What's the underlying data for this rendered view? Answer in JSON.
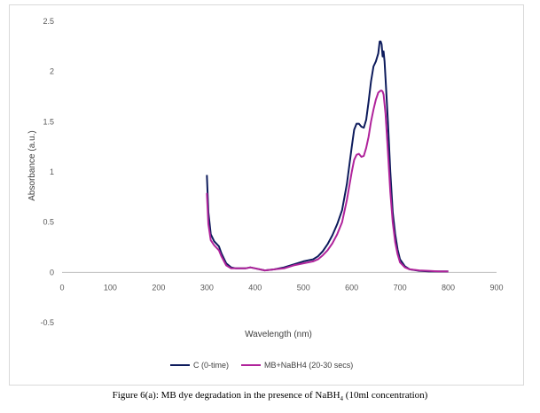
{
  "chart_data": {
    "type": "line",
    "xlabel": "Wavelength (nm)",
    "ylabel": "Absorbance (a.u.)",
    "xlim": [
      0,
      900
    ],
    "ylim": [
      -0.5,
      2.5
    ],
    "x_ticks": [
      "0",
      "100",
      "200",
      "300",
      "400",
      "500",
      "600",
      "700",
      "800",
      "900"
    ],
    "y_ticks": [
      "-0.5",
      "0",
      "0.5",
      "1",
      "1.5",
      "2",
      "2.5"
    ],
    "grid": false,
    "legend_position": "bottom",
    "series": [
      {
        "name": "C (0-time)",
        "color": "#0d1b5c",
        "x": [
          300,
          303,
          308,
          315,
          325,
          330,
          340,
          350,
          360,
          380,
          390,
          400,
          420,
          440,
          460,
          480,
          500,
          510,
          520,
          530,
          540,
          550,
          560,
          570,
          580,
          590,
          600,
          605,
          610,
          615,
          620,
          625,
          630,
          635,
          640,
          645,
          650,
          655,
          658,
          660,
          662,
          664,
          666,
          668,
          670,
          675,
          680,
          685,
          690,
          695,
          700,
          710,
          720,
          740,
          760,
          780,
          800
        ],
        "y": [
          0.97,
          0.6,
          0.38,
          0.31,
          0.26,
          0.19,
          0.09,
          0.05,
          0.04,
          0.04,
          0.05,
          0.04,
          0.02,
          0.03,
          0.05,
          0.08,
          0.11,
          0.12,
          0.13,
          0.16,
          0.21,
          0.28,
          0.37,
          0.48,
          0.62,
          0.88,
          1.25,
          1.42,
          1.48,
          1.48,
          1.45,
          1.44,
          1.52,
          1.7,
          1.9,
          2.05,
          2.1,
          2.18,
          2.3,
          2.3,
          2.27,
          2.15,
          2.2,
          2.1,
          1.93,
          1.5,
          1.0,
          0.6,
          0.38,
          0.23,
          0.13,
          0.06,
          0.03,
          0.015,
          0.01,
          0.01,
          0.01
        ]
      },
      {
        "name": "MB+NaBH4 (20-30 secs)",
        "color": "#b0239b",
        "x": [
          300,
          303,
          308,
          315,
          325,
          330,
          340,
          350,
          360,
          380,
          390,
          400,
          420,
          440,
          460,
          480,
          500,
          510,
          520,
          530,
          540,
          550,
          560,
          570,
          580,
          590,
          600,
          605,
          610,
          615,
          620,
          625,
          630,
          635,
          640,
          645,
          650,
          655,
          660,
          662,
          664,
          666,
          670,
          675,
          680,
          685,
          690,
          695,
          700,
          710,
          720,
          740,
          760,
          780,
          800
        ],
        "y": [
          0.79,
          0.48,
          0.32,
          0.27,
          0.22,
          0.16,
          0.07,
          0.04,
          0.04,
          0.04,
          0.05,
          0.04,
          0.02,
          0.03,
          0.04,
          0.07,
          0.09,
          0.1,
          0.11,
          0.13,
          0.17,
          0.22,
          0.29,
          0.38,
          0.5,
          0.72,
          1.0,
          1.12,
          1.17,
          1.18,
          1.15,
          1.16,
          1.24,
          1.35,
          1.5,
          1.62,
          1.72,
          1.79,
          1.81,
          1.81,
          1.8,
          1.77,
          1.58,
          1.2,
          0.8,
          0.5,
          0.3,
          0.18,
          0.1,
          0.05,
          0.03,
          0.02,
          0.015,
          0.01,
          0.01
        ]
      }
    ]
  },
  "caption_main": "Figure 6(a): MB dye degradation in the presence of NaBH",
  "caption_sub": "4",
  "caption_tail": " (10ml concentration)"
}
